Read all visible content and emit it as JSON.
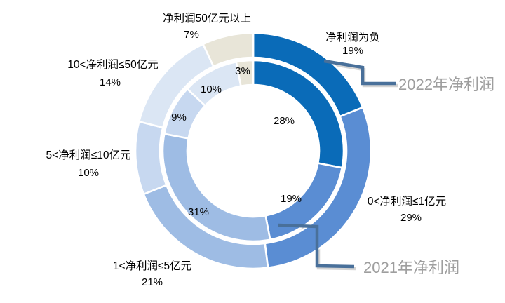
{
  "chart_data": {
    "type": "pie",
    "subtype": "doughnut-double-ring",
    "title": "",
    "unit": "%",
    "start_angle": 0,
    "direction": "clockwise",
    "legend_position": "none",
    "categories": [
      "净利润为负",
      "0<净利润≤1亿元",
      "1<净利润≤5亿元",
      "5<净利润≤10亿元",
      "10<净利润≤50亿元",
      "净利润50亿元以上"
    ],
    "series": [
      {
        "name": "2022年净利润",
        "ring": "outer",
        "values": [
          19,
          29,
          21,
          10,
          14,
          7
        ],
        "labels": [
          "19%",
          "29%",
          "21%",
          "10%",
          "14%",
          "7%"
        ]
      },
      {
        "name": "2021年净利润",
        "ring": "inner",
        "values": [
          28,
          19,
          31,
          9,
          10,
          3
        ],
        "labels": [
          "28%",
          "19%",
          "31%",
          "9%",
          "10%",
          "3%"
        ]
      }
    ],
    "colors": [
      "#0a6bb8",
      "#5a8dd3",
      "#9ebce4",
      "#c7d8f0",
      "#dbe6f4",
      "#e8e5d8"
    ],
    "style": {
      "background": "#ffffff",
      "label_color": "#000000",
      "separator_color": "#ffffff",
      "connector_color": "#49709a",
      "callout_text_color": "#9e9e9e"
    }
  }
}
